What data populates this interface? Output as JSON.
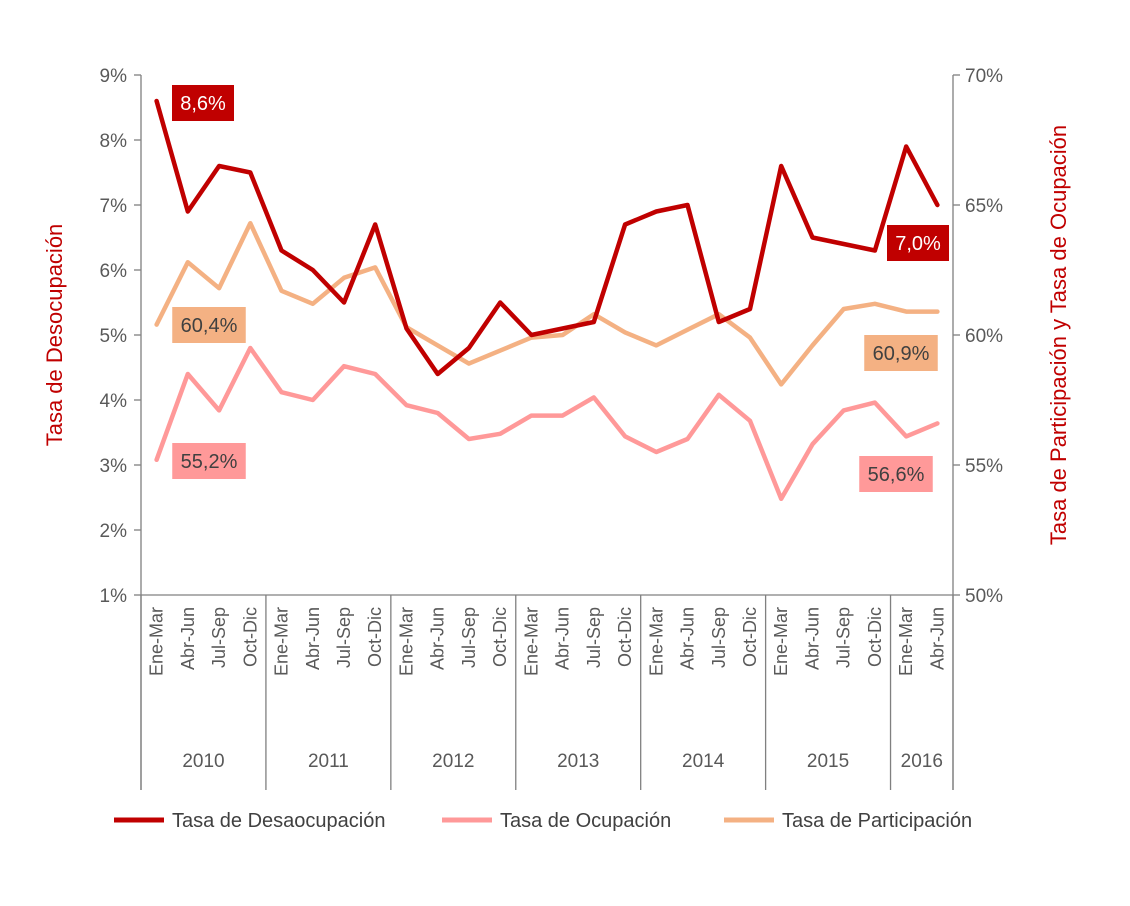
{
  "chart_data": {
    "type": "line",
    "title": "",
    "ylabel_left": "Tasa de Desocupación",
    "ylabel_right": "Tasa de Participación y Tasa de Ocupación",
    "ylim_left": [
      1,
      9
    ],
    "ylim_right": [
      50,
      70
    ],
    "yticks_left": [
      "1%",
      "2%",
      "3%",
      "4%",
      "5%",
      "6%",
      "7%",
      "8%",
      "9%"
    ],
    "yticks_right": [
      "50%",
      "55%",
      "60%",
      "65%",
      "70%"
    ],
    "quarters": [
      "Ene-Mar",
      "Abr-Jun",
      "Jul-Sep",
      "Oct-Dic",
      "Ene-Mar",
      "Abr-Jun",
      "Jul-Sep",
      "Oct-Dic",
      "Ene-Mar",
      "Abr-Jun",
      "Jul-Sep",
      "Oct-Dic",
      "Ene-Mar",
      "Abr-Jun",
      "Jul-Sep",
      "Oct-Dic",
      "Ene-Mar",
      "Abr-Jun",
      "Jul-Sep",
      "Oct-Dic",
      "Ene-Mar",
      "Abr-Jun",
      "Jul-Sep",
      "Oct-Dic",
      "Ene-Mar",
      "Abr-Jun"
    ],
    "years": [
      {
        "label": "2010",
        "count": 4
      },
      {
        "label": "2011",
        "count": 4
      },
      {
        "label": "2012",
        "count": 4
      },
      {
        "label": "2013",
        "count": 4
      },
      {
        "label": "2014",
        "count": 4
      },
      {
        "label": "2015",
        "count": 4
      },
      {
        "label": "2016",
        "count": 2
      }
    ],
    "series": [
      {
        "name": "Tasa de Desaocupación",
        "axis": "left",
        "color": "#c00000",
        "values": [
          8.6,
          6.9,
          7.6,
          7.5,
          6.3,
          6.0,
          5.5,
          6.7,
          5.1,
          4.4,
          4.8,
          5.5,
          5.0,
          5.1,
          5.2,
          6.7,
          6.9,
          7.0,
          5.2,
          5.4,
          7.6,
          6.5,
          6.4,
          6.3,
          7.9,
          7.0
        ],
        "labels": [
          {
            "index": 0,
            "text": "8,6%"
          },
          {
            "index": 25,
            "text": "7,0%"
          }
        ]
      },
      {
        "name": "Tasa de Ocupación",
        "axis": "right",
        "color": "#ff9999",
        "values": [
          55.2,
          58.5,
          57.1,
          59.5,
          57.8,
          57.5,
          58.8,
          58.5,
          57.3,
          57.0,
          56.0,
          56.2,
          56.9,
          56.9,
          57.6,
          56.1,
          55.5,
          56.0,
          57.7,
          56.7,
          53.7,
          55.8,
          57.1,
          57.4,
          56.1,
          56.6
        ],
        "labels": [
          {
            "index": 0,
            "text": "55,2%"
          },
          {
            "index": 25,
            "text": "56,6%"
          }
        ]
      },
      {
        "name": "Tasa de Participación",
        "axis": "right",
        "color": "#f4b183",
        "values": [
          60.4,
          62.8,
          61.8,
          64.3,
          61.7,
          61.2,
          62.2,
          62.6,
          60.3,
          59.6,
          58.9,
          59.4,
          59.9,
          60.0,
          60.8,
          60.1,
          59.6,
          60.2,
          60.8,
          59.9,
          58.1,
          59.6,
          61.0,
          61.2,
          60.9,
          60.9
        ],
        "labels": [
          {
            "index": 0,
            "text": "60,4%"
          },
          {
            "index": 25,
            "text": "60,9%"
          }
        ]
      }
    ],
    "legend": [
      "Tasa de Desaocupación",
      "Tasa de Ocupación",
      "Tasa de Participación"
    ],
    "legend_position": "bottom"
  }
}
